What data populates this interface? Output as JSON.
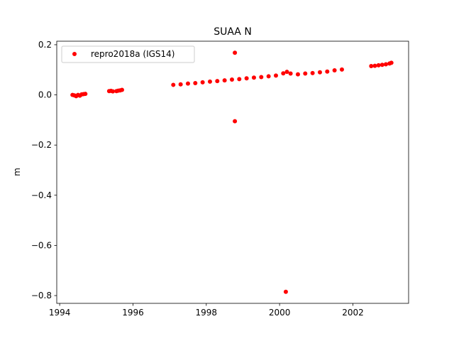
{
  "chart_data": {
    "type": "scatter",
    "title": "SUAA N",
    "y_label": "m",
    "x": [
      1994.35,
      1994.4,
      1994.45,
      1994.5,
      1994.55,
      1994.6,
      1994.65,
      1994.7,
      1995.35,
      1995.4,
      1995.45,
      1995.55,
      1995.6,
      1995.65,
      1995.7,
      1997.1,
      1997.3,
      1997.5,
      1997.7,
      1997.9,
      1998.1,
      1998.3,
      1998.5,
      1998.7,
      1998.9,
      1999.1,
      1999.3,
      1999.5,
      1999.7,
      1999.9,
      2000.1,
      2000.2,
      2000.3,
      2000.5,
      2000.7,
      2000.9,
      2001.1,
      2001.3,
      2001.5,
      2001.7,
      2002.5,
      2002.6,
      2002.7,
      2002.8,
      2002.9,
      2003.0,
      2003.05,
      1998.78,
      1998.78,
      2000.17
    ],
    "series": [
      {
        "name": "repro2018a (IGS14)",
        "color": "#ff0000",
        "values": [
          0.0,
          -0.002,
          -0.005,
          0.0,
          -0.003,
          0.002,
          0.003,
          0.004,
          0.015,
          0.016,
          0.014,
          0.015,
          0.017,
          0.018,
          0.02,
          0.04,
          0.042,
          0.045,
          0.047,
          0.05,
          0.053,
          0.055,
          0.058,
          0.061,
          0.063,
          0.066,
          0.069,
          0.071,
          0.074,
          0.077,
          0.086,
          0.092,
          0.085,
          0.082,
          0.085,
          0.087,
          0.09,
          0.093,
          0.098,
          0.101,
          0.115,
          0.116,
          0.118,
          0.12,
          0.122,
          0.125,
          0.128,
          0.168,
          -0.105,
          -0.785
        ]
      }
    ],
    "xlim": [
      1993.92,
      2003.52
    ],
    "ylim": [
      -0.831,
      0.214
    ],
    "xticks": [
      1994,
      1996,
      1998,
      2000,
      2002
    ],
    "yticks": [
      {
        "value": 0.2,
        "label": "0.2"
      },
      {
        "value": 0,
        "label": "0.0"
      },
      {
        "value": -0.2,
        "label": "−0.2"
      },
      {
        "value": -0.4,
        "label": "−0.4"
      },
      {
        "value": -0.6,
        "label": "−0.6"
      },
      {
        "value": -0.8,
        "label": "−0.8"
      }
    ],
    "legend": "upper left",
    "grid": false
  }
}
